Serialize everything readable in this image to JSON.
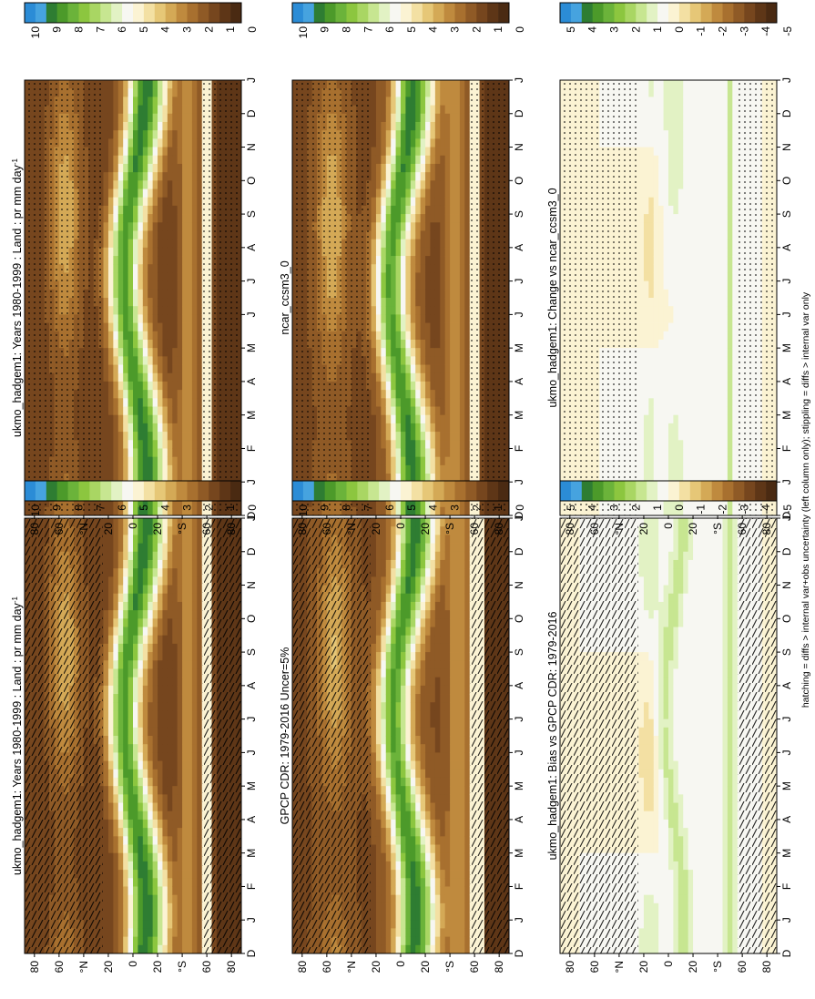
{
  "footer": "hatching = diffs > internal var+obs uncertainty (left column only); stippling = diffs > internal var only",
  "axes": {
    "time_ticks": [
      "D",
      "J",
      "F",
      "M",
      "A",
      "M",
      "J",
      "J",
      "A",
      "S",
      "O",
      "N",
      "D",
      "J"
    ],
    "lat_ticks": [
      "80",
      "60",
      "°N",
      "20",
      "0",
      "20",
      "°S",
      "60",
      "80"
    ],
    "lat_values": [
      80,
      60,
      40,
      20,
      0,
      -20,
      -40,
      -60,
      -80
    ]
  },
  "colorbars": {
    "absolute": {
      "labels": [
        "10",
        "9",
        "8",
        "7",
        "6",
        "5",
        "4",
        "3",
        "2",
        "1",
        "0"
      ],
      "colors": [
        "#2b8cd6",
        "#46a3df",
        "#2e7d32",
        "#4c9a2a",
        "#6bb33a",
        "#8cc63f",
        "#a9d663",
        "#c7e691",
        "#e2f2c4",
        "#f7f7f2",
        "#fbf3d3",
        "#f3e0a3",
        "#e6c777",
        "#d4a956",
        "#bf8a3e",
        "#a8702f",
        "#8f5a26",
        "#76461e",
        "#5e3617",
        "#4a2a12"
      ]
    },
    "difference": {
      "labels": [
        "5",
        "4",
        "3",
        "2",
        "1",
        "0",
        "-1",
        "-2",
        "-3",
        "-4",
        "-5"
      ],
      "colors": [
        "#2b8cd6",
        "#46a3df",
        "#2e7d32",
        "#4c9a2a",
        "#6bb33a",
        "#8cc63f",
        "#a9d663",
        "#c7e691",
        "#e2f2c4",
        "#f7f7f2",
        "#fbf3d3",
        "#f3e0a3",
        "#e6c777",
        "#d4a956",
        "#bf8a3e",
        "#a8702f",
        "#8f5a26",
        "#76461e",
        "#5e3617",
        "#4a2a12"
      ]
    }
  },
  "chart_data": [
    {
      "type": "heatmap",
      "panel": "model-left",
      "title": "ukmo_hadgem1: Years 1980-1999 : Land : pr mm day",
      "title_sup": "-1",
      "colorbar": "absolute",
      "overlay": "hatching",
      "field": "model"
    },
    {
      "type": "heatmap",
      "panel": "model-right",
      "title": "ukmo_hadgem1: Years 1980-1999 : Land : pr mm day",
      "title_sup": "-1",
      "colorbar": "absolute",
      "overlay": "stippling",
      "field": "model"
    },
    {
      "type": "heatmap",
      "panel": "obs",
      "title": "GPCP CDR: 1979-2016 Uncer=5%",
      "colorbar": "absolute",
      "overlay": "hatching",
      "field": "obs"
    },
    {
      "type": "heatmap",
      "panel": "reference-model",
      "title": "ncar_ccsm3_0",
      "colorbar": "absolute",
      "overlay": "stippling",
      "field": "ref"
    },
    {
      "type": "heatmap",
      "panel": "bias",
      "title": "ukmo_hadgem1: Bias vs GPCP CDR: 1979-2016",
      "colorbar": "difference",
      "overlay": "hatching",
      "field": "bias"
    },
    {
      "type": "heatmap",
      "panel": "change",
      "title": "ukmo_hadgem1: Change vs ncar_ccsm3_0",
      "colorbar": "difference",
      "overlay": "stippling",
      "field": "change"
    }
  ]
}
